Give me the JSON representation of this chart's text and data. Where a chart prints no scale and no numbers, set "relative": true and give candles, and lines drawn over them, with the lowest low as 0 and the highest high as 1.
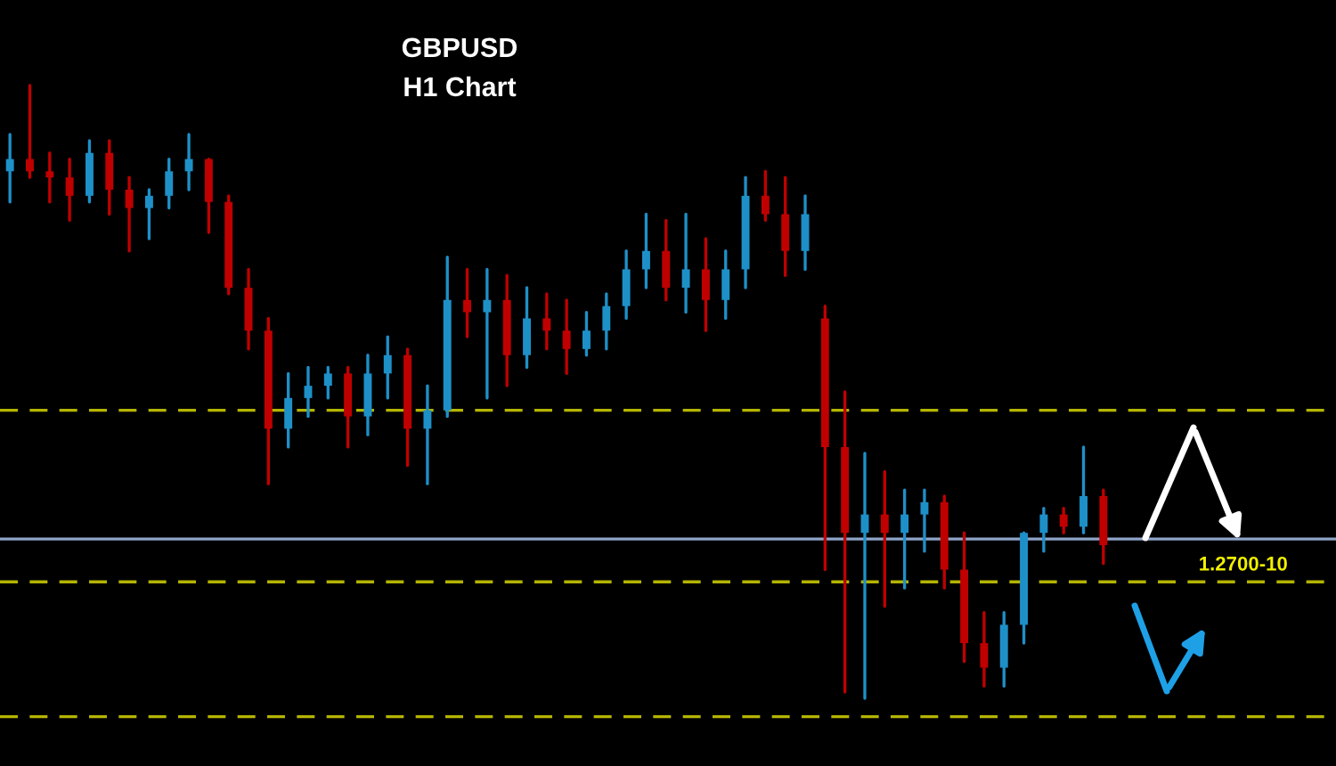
{
  "chart_data": {
    "type": "candlestick",
    "title": "GBPUSD",
    "subtitle": "H1 Chart",
    "relative": true,
    "annotations": [
      "1.2700-10"
    ],
    "categories": [
      null,
      null,
      null,
      null,
      null,
      null,
      null,
      null,
      null,
      null,
      null,
      null,
      null,
      null,
      null,
      null,
      null,
      null,
      null,
      null,
      null,
      null,
      null,
      null,
      null,
      null,
      null,
      null,
      null,
      null,
      null,
      null,
      null,
      null,
      null,
      null,
      null,
      null,
      null,
      null,
      null,
      null,
      null,
      null,
      null,
      null,
      null,
      null,
      null,
      null,
      null,
      null,
      null,
      null,
      null,
      null
    ],
    "ohlc": [
      [
        0.86,
        0.92,
        0.81,
        0.88
      ],
      [
        0.88,
        1.0,
        0.85,
        0.86
      ],
      [
        0.86,
        0.89,
        0.81,
        0.85
      ],
      [
        0.85,
        0.88,
        0.78,
        0.82
      ],
      [
        0.82,
        0.91,
        0.81,
        0.89
      ],
      [
        0.89,
        0.91,
        0.79,
        0.83
      ],
      [
        0.83,
        0.85,
        0.73,
        0.8
      ],
      [
        0.8,
        0.83,
        0.75,
        0.82
      ],
      [
        0.82,
        0.88,
        0.8,
        0.86
      ],
      [
        0.86,
        0.92,
        0.83,
        0.88
      ],
      [
        0.88,
        0.88,
        0.76,
        0.81
      ],
      [
        0.81,
        0.82,
        0.66,
        0.67
      ],
      [
        0.67,
        0.7,
        0.57,
        0.6
      ],
      [
        0.6,
        0.62,
        0.35,
        0.44
      ],
      [
        0.44,
        0.53,
        0.41,
        0.49
      ],
      [
        0.49,
        0.54,
        0.46,
        0.51
      ],
      [
        0.51,
        0.54,
        0.49,
        0.53
      ],
      [
        0.53,
        0.54,
        0.41,
        0.46
      ],
      [
        0.46,
        0.56,
        0.43,
        0.53
      ],
      [
        0.53,
        0.59,
        0.49,
        0.56
      ],
      [
        0.56,
        0.57,
        0.38,
        0.44
      ],
      [
        0.44,
        0.51,
        0.35,
        0.47
      ],
      [
        0.47,
        0.72,
        0.46,
        0.65
      ],
      [
        0.65,
        0.7,
        0.59,
        0.63
      ],
      [
        0.63,
        0.7,
        0.49,
        0.65
      ],
      [
        0.65,
        0.69,
        0.51,
        0.56
      ],
      [
        0.56,
        0.67,
        0.54,
        0.62
      ],
      [
        0.62,
        0.66,
        0.57,
        0.6
      ],
      [
        0.6,
        0.65,
        0.53,
        0.57
      ],
      [
        0.57,
        0.63,
        0.56,
        0.6
      ],
      [
        0.6,
        0.66,
        0.57,
        0.64
      ],
      [
        0.64,
        0.73,
        0.62,
        0.7
      ],
      [
        0.7,
        0.79,
        0.67,
        0.73
      ],
      [
        0.73,
        0.78,
        0.65,
        0.67
      ],
      [
        0.67,
        0.79,
        0.63,
        0.7
      ],
      [
        0.7,
        0.75,
        0.6,
        0.65
      ],
      [
        0.65,
        0.73,
        0.62,
        0.7
      ],
      [
        0.7,
        0.85,
        0.67,
        0.82
      ],
      [
        0.82,
        0.86,
        0.78,
        0.79
      ],
      [
        0.79,
        0.85,
        0.69,
        0.73
      ],
      [
        0.73,
        0.82,
        0.7,
        0.79
      ],
      [
        0.62,
        0.64,
        0.21,
        0.41
      ],
      [
        0.41,
        0.5,
        0.01,
        0.27
      ],
      [
        0.27,
        0.4,
        0.0,
        0.3
      ],
      [
        0.3,
        0.37,
        0.15,
        0.27
      ],
      [
        0.27,
        0.34,
        0.18,
        0.3
      ],
      [
        0.3,
        0.34,
        0.24,
        0.32
      ],
      [
        0.32,
        0.33,
        0.18,
        0.21
      ],
      [
        0.21,
        0.27,
        0.06,
        0.09
      ],
      [
        0.09,
        0.14,
        0.02,
        0.05
      ],
      [
        0.05,
        0.14,
        0.02,
        0.12
      ],
      [
        0.12,
        0.27,
        0.09,
        0.27
      ],
      [
        0.27,
        0.31,
        0.24,
        0.3
      ],
      [
        0.3,
        0.31,
        0.27,
        0.28
      ],
      [
        0.28,
        0.41,
        0.27,
        0.33
      ],
      [
        0.33,
        0.34,
        0.22,
        0.25
      ]
    ],
    "colors": [
      "#1e90c8",
      "#c00000",
      "#c00000",
      "#c00000",
      "#1e90c8",
      "#c00000",
      "#c00000",
      "#1e90c8",
      "#1e90c8",
      "#1e90c8",
      "#c00000",
      "#c00000",
      "#c00000",
      "#c00000",
      "#1e90c8",
      "#1e90c8",
      "#1e90c8",
      "#c00000",
      "#1e90c8",
      "#1e90c8",
      "#c00000",
      "#1e90c8",
      "#1e90c8",
      "#c00000",
      "#1e90c8",
      "#c00000",
      "#1e90c8",
      "#c00000",
      "#c00000",
      "#1e90c8",
      "#1e90c8",
      "#1e90c8",
      "#1e90c8",
      "#c00000",
      "#1e90c8",
      "#c00000",
      "#1e90c8",
      "#1e90c8",
      "#c00000",
      "#c00000",
      "#1e90c8",
      "#c00000",
      "#c00000",
      "#1e90c8",
      "#c00000",
      "#1e90c8",
      "#1e90c8",
      "#c00000",
      "#c00000",
      "#c00000",
      "#1e90c8",
      "#1e90c8",
      "#1e90c8",
      "#c00000",
      "#1e90c8",
      "#c00000"
    ],
    "ref_lines": [
      {
        "axis": "y",
        "value": 0.47,
        "color": "#b4b400",
        "line_style": "dashed"
      },
      {
        "axis": "y",
        "value": 0.26,
        "color": "#8ea4c8",
        "line_style": "solid"
      },
      {
        "axis": "y",
        "value": 0.19,
        "color": "#b4b400",
        "line_style": "dashed"
      },
      {
        "axis": "y",
        "value": -0.03,
        "color": "#b4b400",
        "line_style": "dashed"
      }
    ]
  }
}
